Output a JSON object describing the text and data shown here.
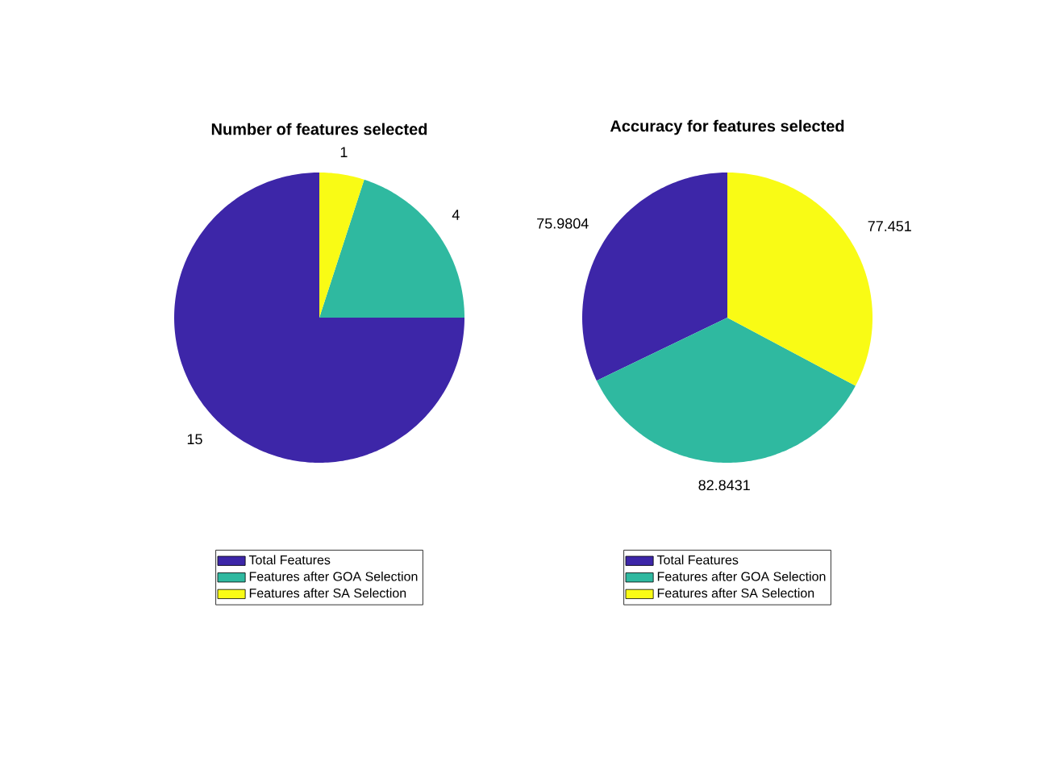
{
  "chart_data": [
    {
      "type": "pie",
      "title": "Number of features selected",
      "categories": [
        "Total Features",
        "Features after GOA Selection",
        "Features after SA Selection"
      ],
      "values": [
        15,
        4,
        1
      ],
      "colors": [
        "#3d26a8",
        "#2fb9a0",
        "#f9fb15"
      ],
      "data_labels": true,
      "legend": "bottom"
    },
    {
      "type": "pie",
      "title": "Accuracy for features selected",
      "categories": [
        "Total Features",
        "Features after GOA Selection",
        "Features after SA Selection"
      ],
      "values": [
        75.9804,
        82.8431,
        77.451
      ],
      "colors": [
        "#3d26a8",
        "#2fb9a0",
        "#f9fb15"
      ],
      "data_labels": true,
      "legend": "bottom"
    }
  ]
}
